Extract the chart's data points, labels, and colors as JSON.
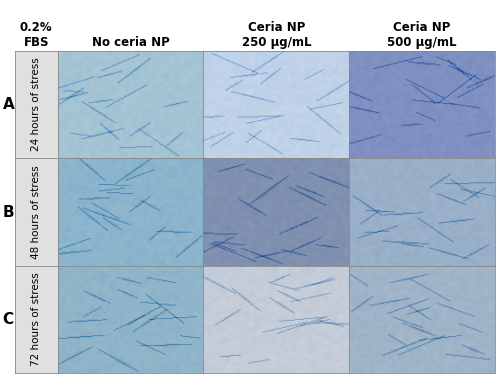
{
  "col_headers": [
    "No ceria NP",
    "Ceria NP\n250 µg/mL",
    "Ceria NP\n500 µg/mL"
  ],
  "row_labels": [
    "A",
    "B",
    "C"
  ],
  "row_ylabels": [
    "24 hours of stress",
    "48 hours of stress",
    "72 hours of stress"
  ],
  "top_left_label": "0.2%\nFBS",
  "background_color": "#ffffff",
  "cell_colors": [
    [
      "#a4c4d4",
      "#c0d2e8",
      "#8090c0"
    ],
    [
      "#8cb4cc",
      "#8090b0",
      "#9ab0c8"
    ],
    [
      "#90b4c8",
      "#c4ccd8",
      "#a0b4c8"
    ]
  ],
  "label_col_color": "#e0e0e0",
  "grid_line_color": "#888888",
  "header_fontsize": 8.5,
  "label_fontsize": 8.5,
  "row_label_fontsize": 11,
  "stress_label_fontsize": 7.5
}
